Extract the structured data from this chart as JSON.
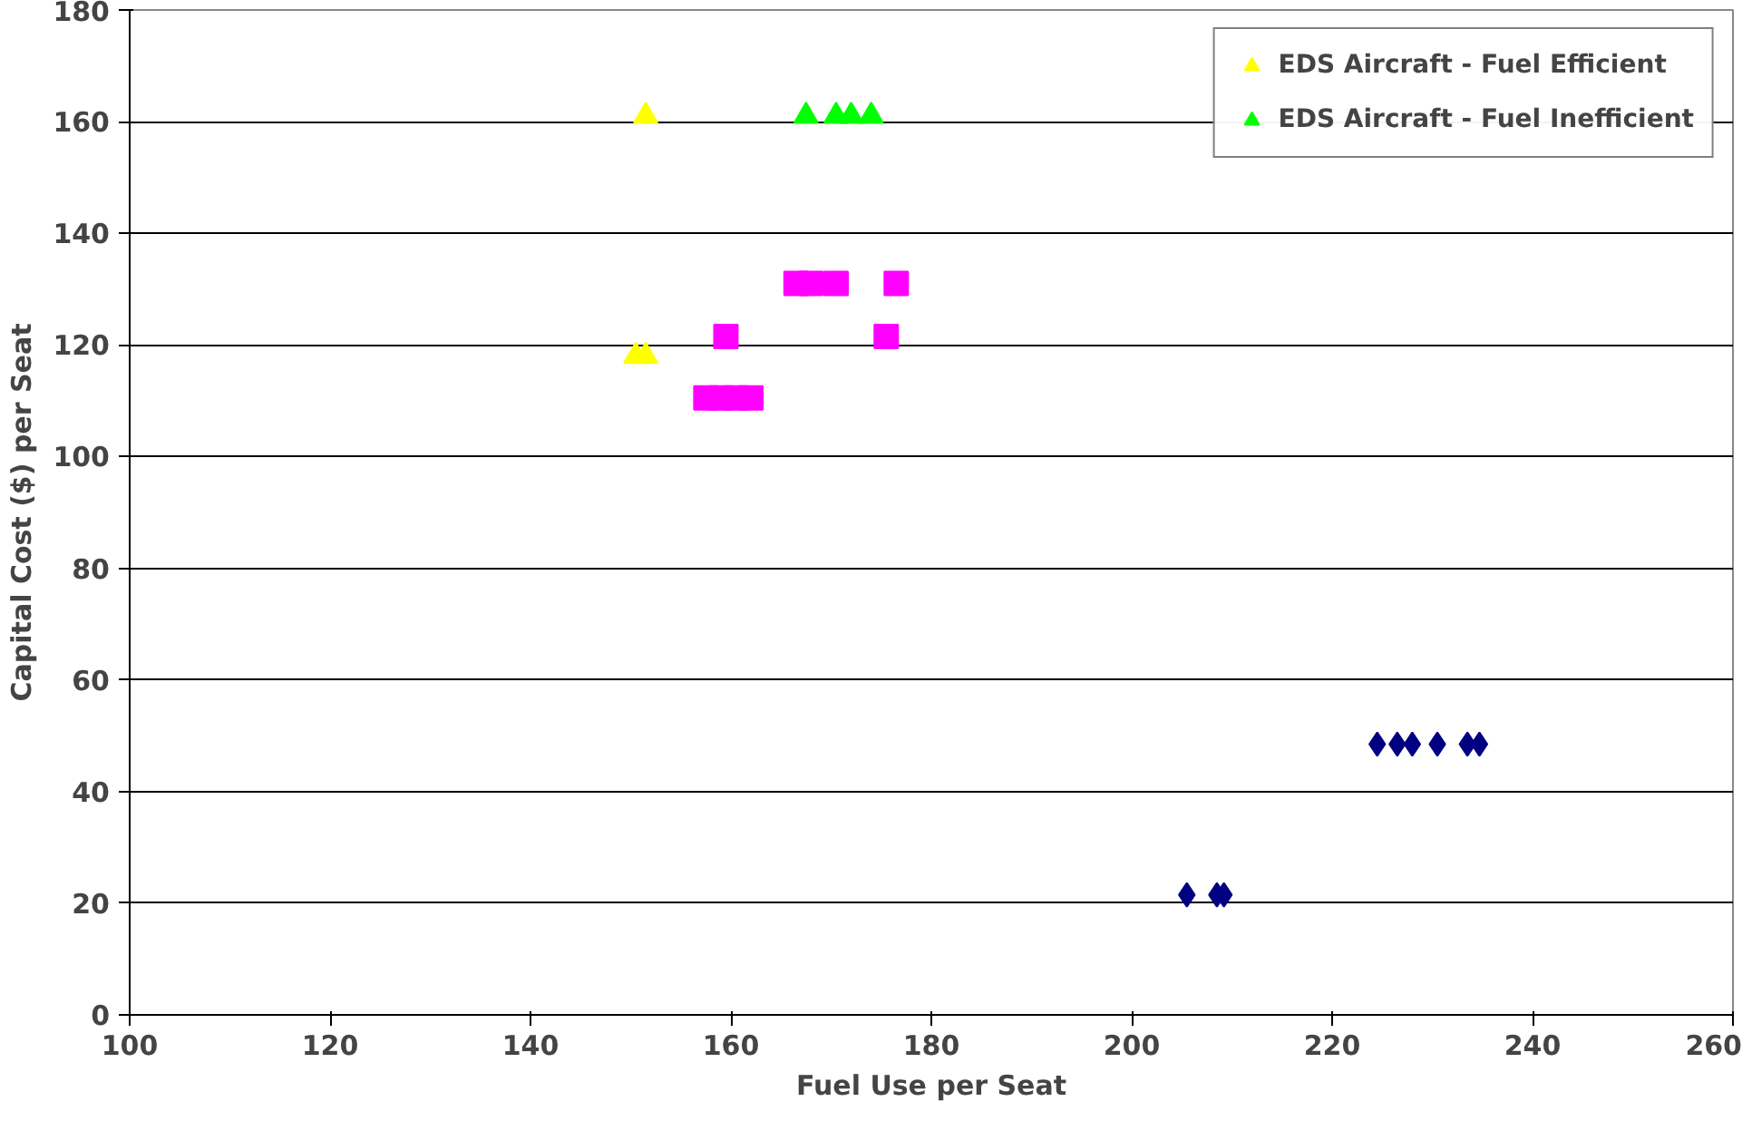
{
  "chart_data": {
    "type": "scatter",
    "xlabel": "Fuel Use per Seat",
    "ylabel": "Capital Cost ($) per Seat",
    "xlim": [
      100,
      260
    ],
    "xticks": [
      100,
      120,
      140,
      160,
      180,
      200,
      220,
      240,
      260
    ],
    "ylim": [
      0,
      180
    ],
    "yticks": [
      0,
      20,
      40,
      60,
      80,
      100,
      120,
      140,
      160,
      180
    ],
    "grid": "y",
    "legend": "top right",
    "series": [
      {
        "color": "#000080",
        "marker": "diamond",
        "x": [
          205.5,
          208.5,
          209.2,
          224.5,
          226.5,
          228,
          229,
          229.5,
          230,
          230.5,
          233.5,
          234.7
        ],
        "values": [
          21.5,
          21.5,
          21.5,
          48.5,
          48.5,
          48.5,
          null,
          null,
          null,
          48.5,
          48.5,
          48.5
        ]
      },
      {
        "color": "#ff00ff",
        "marker": "square",
        "x": [
          166.5,
          168,
          169.5,
          170.5,
          176.5,
          159.5,
          175.5,
          157.5,
          159,
          160.5,
          162
        ],
        "values": [
          131,
          131,
          null,
          131,
          131,
          121.5,
          121.5,
          110.5,
          110.5,
          110.5,
          110.5
        ]
      },
      {
        "name": "EDS Aircraft - Fuel Efficient",
        "color": "#ffff00",
        "marker": "triangle",
        "x": [
          151.5,
          150.5,
          151.5
        ],
        "values": [
          161,
          118,
          118
        ]
      },
      {
        "name": "EDS Aircraft - Fuel Inefficient",
        "color": "#00ff00",
        "marker": "triangle",
        "x": [
          167.5,
          170.5,
          172,
          174
        ],
        "values": [
          161,
          161,
          161,
          161
        ]
      }
    ]
  }
}
